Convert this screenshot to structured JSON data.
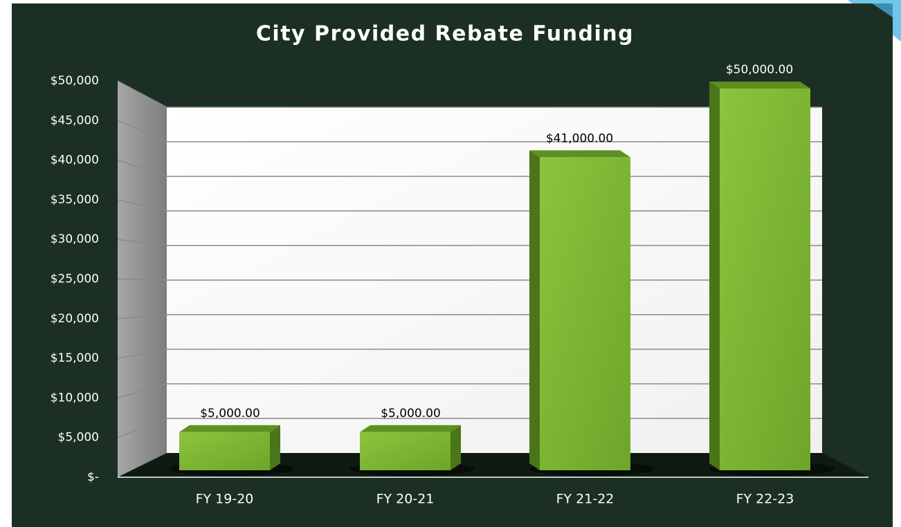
{
  "chart_data": {
    "type": "bar3d",
    "title": "City Provided Rebate Funding",
    "categories": [
      "FY 19-20",
      "FY 20-21",
      "FY 21-22",
      "FY 22-23"
    ],
    "values": [
      5000,
      5000,
      41000,
      50000
    ],
    "value_labels": [
      "$5,000.00",
      "$5,000.00",
      "$41,000.00",
      "$50,000.00"
    ],
    "color": "#7db32f",
    "ylim": [
      0,
      50000
    ],
    "yticks": [
      {
        "value": 0,
        "label": "$-"
      },
      {
        "value": 5000,
        "label": "$5,000"
      },
      {
        "value": 10000,
        "label": "$10,000"
      },
      {
        "value": 15000,
        "label": "$15,000"
      },
      {
        "value": 20000,
        "label": "$20,000"
      },
      {
        "value": 25000,
        "label": "$25,000"
      },
      {
        "value": 30000,
        "label": "$30,000"
      },
      {
        "value": 35000,
        "label": "$35,000"
      },
      {
        "value": 40000,
        "label": "$40,000"
      },
      {
        "value": 45000,
        "label": "$45,000"
      },
      {
        "value": 50000,
        "label": "$50,000"
      }
    ],
    "grid": true
  }
}
